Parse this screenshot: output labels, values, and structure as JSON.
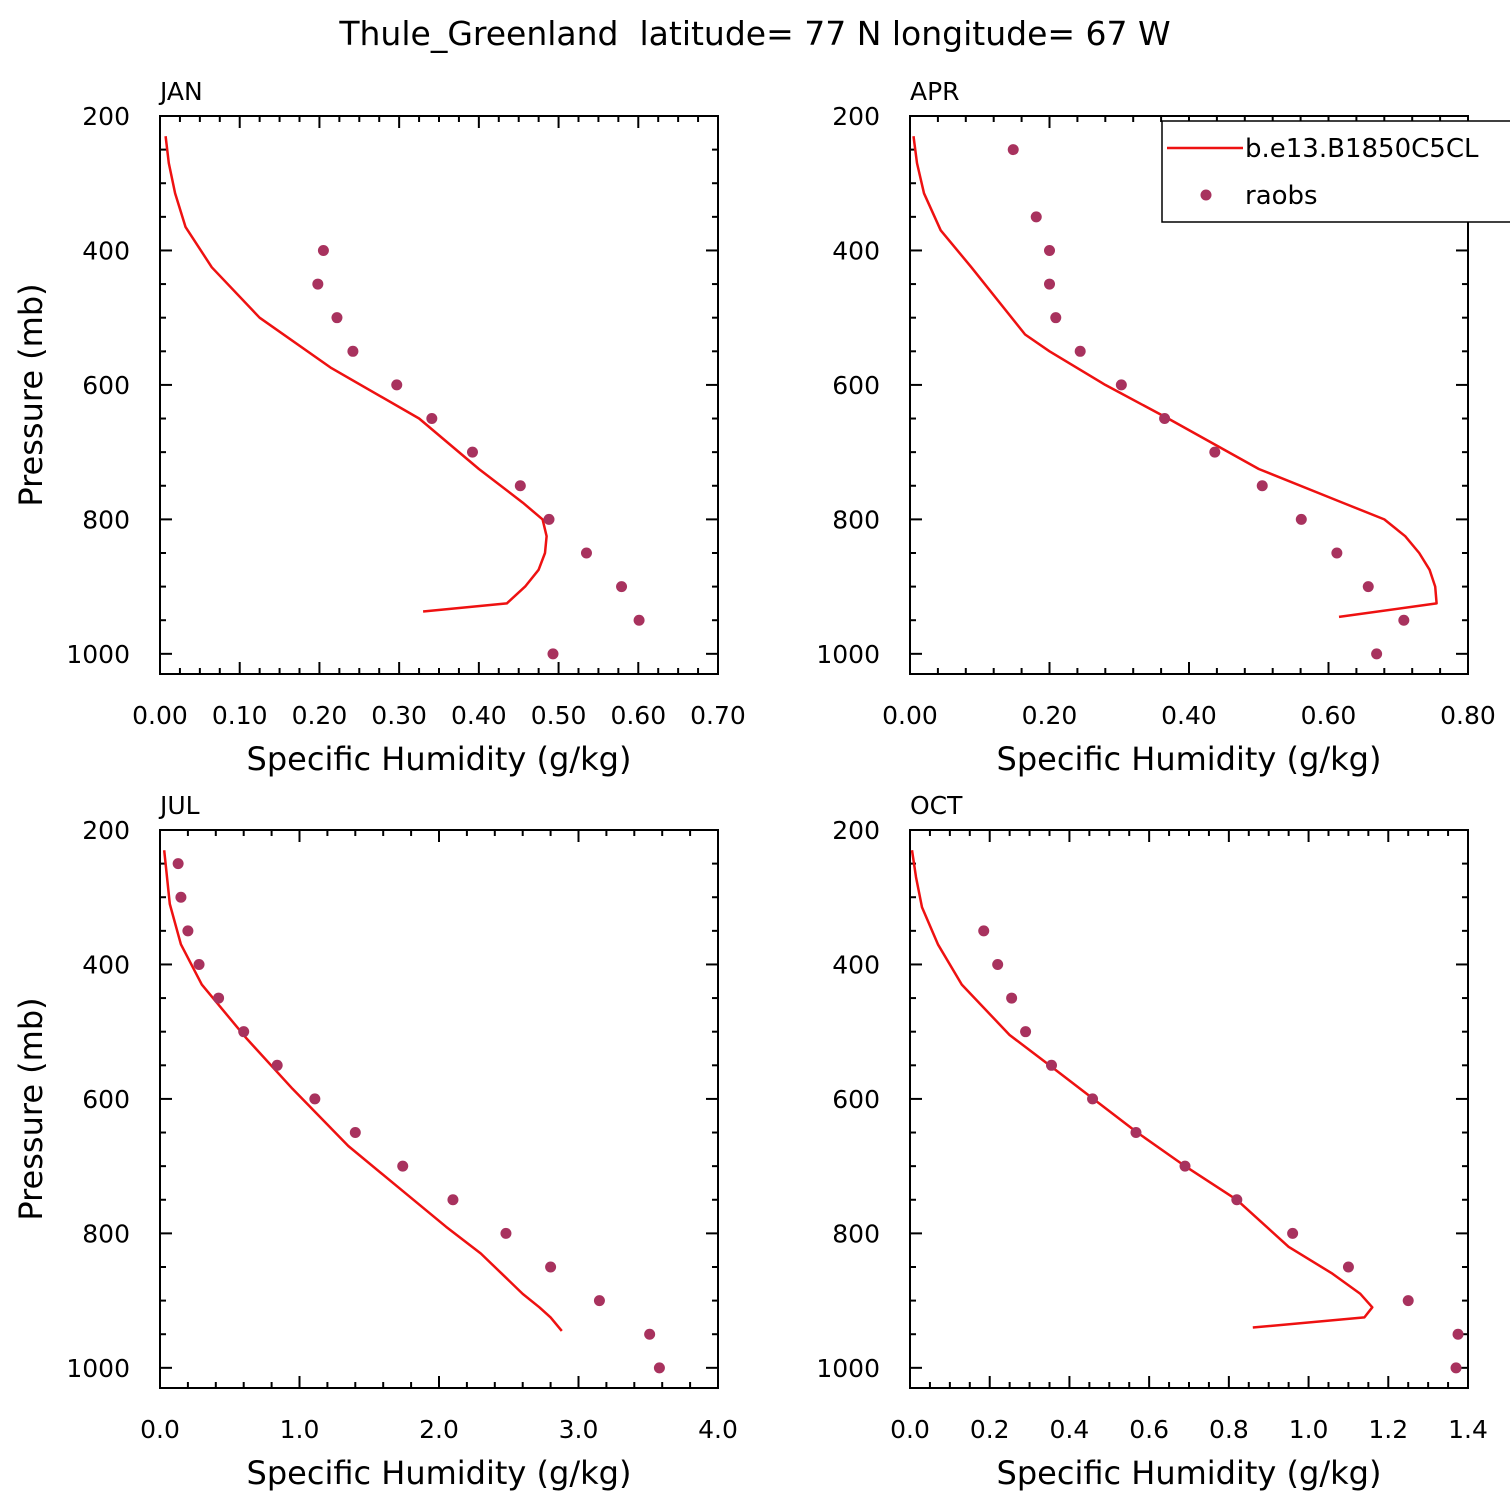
{
  "title": "Thule_Greenland  latitude= 77 N longitude= 67 W",
  "legend": {
    "model_label": "b.e13.B1850C5CL",
    "obs_label": "raobs"
  },
  "colors": {
    "model": "#ee1111",
    "obs": "#a8325e",
    "axis": "#000000"
  },
  "chart_data": [
    {
      "type": "line",
      "panel": "JAN",
      "xlabel": "Specific Humidity (g/kg)",
      "ylabel": "Pressure (mb)",
      "xlim": [
        0,
        0.7
      ],
      "ylim": [
        200,
        1000
      ],
      "y_inverted": true,
      "xticks": [
        "0.00",
        "0.10",
        "0.20",
        "0.30",
        "0.40",
        "0.50",
        "0.60",
        "0.70"
      ],
      "yticks": [
        "200",
        "400",
        "600",
        "800",
        "1000"
      ],
      "series": [
        {
          "name": "b.e13.B1850C5CL",
          "kind": "line",
          "x": [
            0.33,
            0.435,
            0.458,
            0.475,
            0.483,
            0.485,
            0.48,
            0.455,
            0.4,
            0.325,
            0.215,
            0.125,
            0.065,
            0.032,
            0.019,
            0.011,
            0.007
          ],
          "y": [
            937,
            925,
            900,
            875,
            850,
            825,
            800,
            775,
            725,
            650,
            575,
            500,
            425,
            365,
            315,
            270,
            230
          ]
        },
        {
          "name": "raobs",
          "kind": "points",
          "x": [
            0.205,
            0.198,
            0.222,
            0.242,
            0.297,
            0.341,
            0.392,
            0.452,
            0.488,
            0.535,
            0.579,
            0.601,
            0.493
          ],
          "y": [
            400,
            450,
            500,
            550,
            600,
            650,
            700,
            750,
            800,
            850,
            900,
            950,
            1000
          ]
        }
      ]
    },
    {
      "type": "line",
      "panel": "APR",
      "xlabel": "Specific Humidity (g/kg)",
      "ylabel": "",
      "xlim": [
        0,
        0.8
      ],
      "ylim": [
        200,
        1000
      ],
      "y_inverted": true,
      "xticks": [
        "0.00",
        "0.20",
        "0.40",
        "0.60",
        "0.80"
      ],
      "yticks": [
        "200",
        "400",
        "600",
        "800",
        "1000"
      ],
      "series": [
        {
          "name": "b.e13.B1850C5CL",
          "kind": "line",
          "x": [
            0.615,
            0.755,
            0.753,
            0.745,
            0.73,
            0.71,
            0.68,
            0.62,
            0.5,
            0.37,
            0.28,
            0.2,
            0.165,
            0.088,
            0.044,
            0.02,
            0.01,
            0.005
          ],
          "y": [
            945,
            925,
            900,
            875,
            850,
            825,
            800,
            775,
            725,
            650,
            600,
            550,
            525,
            425,
            370,
            315,
            270,
            230
          ]
        },
        {
          "name": "raobs",
          "kind": "points",
          "x": [
            0.148,
            0.181,
            0.2,
            0.2,
            0.209,
            0.244,
            0.303,
            0.365,
            0.437,
            0.505,
            0.561,
            0.612,
            0.657,
            0.708,
            0.669
          ],
          "y": [
            250,
            350,
            400,
            450,
            500,
            550,
            600,
            650,
            700,
            750,
            800,
            850,
            900,
            950,
            1000
          ]
        }
      ]
    },
    {
      "type": "line",
      "panel": "JUL",
      "xlabel": "Specific Humidity (g/kg)",
      "ylabel": "Pressure (mb)",
      "xlim": [
        0,
        4.0
      ],
      "ylim": [
        200,
        1000
      ],
      "y_inverted": true,
      "xticks": [
        "0.0",
        "1.0",
        "2.0",
        "3.0",
        "4.0"
      ],
      "yticks": [
        "200",
        "400",
        "600",
        "800",
        "1000"
      ],
      "series": [
        {
          "name": "b.e13.B1850C5CL",
          "kind": "line",
          "x": [
            2.88,
            2.8,
            2.72,
            2.6,
            2.45,
            2.3,
            2.05,
            1.7,
            1.35,
            0.95,
            0.62,
            0.3,
            0.15,
            0.07,
            0.03
          ],
          "y": [
            945,
            925,
            910,
            890,
            860,
            830,
            790,
            730,
            670,
            585,
            510,
            430,
            370,
            310,
            230
          ]
        },
        {
          "name": "raobs",
          "kind": "points",
          "x": [
            0.13,
            0.15,
            0.2,
            0.28,
            0.42,
            0.6,
            0.84,
            1.11,
            1.4,
            1.74,
            2.1,
            2.48,
            2.8,
            3.15,
            3.51,
            3.58
          ],
          "y": [
            250,
            300,
            350,
            400,
            450,
            500,
            550,
            600,
            650,
            700,
            750,
            800,
            850,
            900,
            950,
            1000
          ]
        }
      ]
    },
    {
      "type": "line",
      "panel": "OCT",
      "xlabel": "Specific Humidity (g/kg)",
      "ylabel": "",
      "xlim": [
        0,
        1.4
      ],
      "ylim": [
        200,
        1000
      ],
      "y_inverted": true,
      "xticks": [
        "0.0",
        "0.2",
        "0.4",
        "0.6",
        "0.8",
        "1.0",
        "1.2",
        "1.4"
      ],
      "yticks": [
        "200",
        "400",
        "600",
        "800",
        "1000"
      ],
      "series": [
        {
          "name": "b.e13.B1850C5CL",
          "kind": "line",
          "x": [
            0.86,
            1.14,
            1.16,
            1.13,
            1.06,
            0.95,
            0.82,
            0.69,
            0.57,
            0.46,
            0.35,
            0.25,
            0.13,
            0.07,
            0.03,
            0.015,
            0.005
          ],
          "y": [
            940,
            925,
            910,
            890,
            860,
            820,
            750,
            700,
            650,
            600,
            550,
            505,
            430,
            370,
            315,
            270,
            230
          ]
        },
        {
          "name": "raobs",
          "kind": "points",
          "x": [
            0.185,
            0.22,
            0.255,
            0.29,
            0.355,
            0.458,
            0.567,
            0.69,
            0.82,
            0.96,
            1.1,
            1.25,
            1.375,
            1.37
          ],
          "y": [
            350,
            400,
            450,
            500,
            550,
            600,
            650,
            700,
            750,
            800,
            850,
            900,
            950,
            1000
          ]
        }
      ]
    }
  ]
}
